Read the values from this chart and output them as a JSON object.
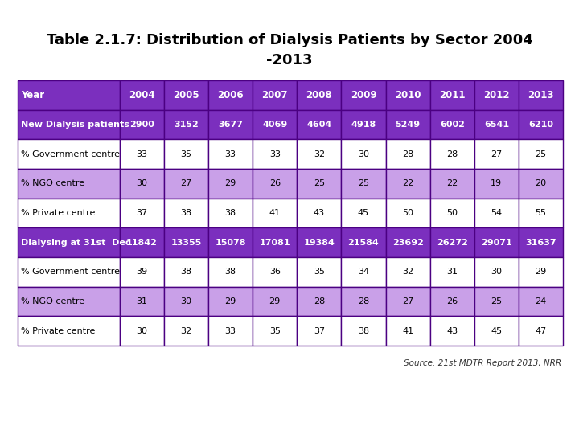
{
  "title_line1": "Table 2.1.7: Distribution of Dialysis Patients by Sector 2004",
  "title_line2": "-2013",
  "columns": [
    "Year",
    "2004",
    "2005",
    "2006",
    "2007",
    "2008",
    "2009",
    "2010",
    "2011",
    "2012",
    "2013"
  ],
  "rows": [
    {
      "label": "New Dialysis patients",
      "values": [
        "2900",
        "3152",
        "3677",
        "4069",
        "4604",
        "4918",
        "5249",
        "6002",
        "6541",
        "6210"
      ],
      "row_bg": "#7B2FBE",
      "text_color": "#FFFFFF",
      "bold": true
    },
    {
      "label": "% Government centre",
      "values": [
        "33",
        "35",
        "33",
        "33",
        "32",
        "30",
        "28",
        "28",
        "27",
        "25"
      ],
      "row_bg": "#FFFFFF",
      "text_color": "#000000",
      "bold": false
    },
    {
      "label": "% NGO centre",
      "values": [
        "30",
        "27",
        "29",
        "26",
        "25",
        "25",
        "22",
        "22",
        "19",
        "20"
      ],
      "row_bg": "#C9A0E8",
      "text_color": "#000000",
      "bold": false
    },
    {
      "label": "% Private centre",
      "values": [
        "37",
        "38",
        "38",
        "41",
        "43",
        "45",
        "50",
        "50",
        "54",
        "55"
      ],
      "row_bg": "#FFFFFF",
      "text_color": "#000000",
      "bold": false
    },
    {
      "label": "Dialysing at 31st  Dec",
      "values": [
        "11842",
        "13355",
        "15078",
        "17081",
        "19384",
        "21584",
        "23692",
        "26272",
        "29071",
        "31637"
      ],
      "row_bg": "#7B2FBE",
      "text_color": "#FFFFFF",
      "bold": true
    },
    {
      "label": "% Government centre",
      "values": [
        "39",
        "38",
        "38",
        "36",
        "35",
        "34",
        "32",
        "31",
        "30",
        "29"
      ],
      "row_bg": "#FFFFFF",
      "text_color": "#000000",
      "bold": false
    },
    {
      "label": "% NGO centre",
      "values": [
        "31",
        "30",
        "29",
        "29",
        "28",
        "28",
        "27",
        "26",
        "25",
        "24"
      ],
      "row_bg": "#C9A0E8",
      "text_color": "#000000",
      "bold": false
    },
    {
      "label": "% Private centre",
      "values": [
        "30",
        "32",
        "33",
        "35",
        "37",
        "38",
        "41",
        "43",
        "45",
        "47"
      ],
      "row_bg": "#FFFFFF",
      "text_color": "#000000",
      "bold": false
    }
  ],
  "header_bg": "#7B2FBE",
  "header_text_color": "#FFFFFF",
  "border_color": "#4B0082",
  "fig_width": 7.2,
  "fig_height": 5.4,
  "fig_dpi": 100
}
